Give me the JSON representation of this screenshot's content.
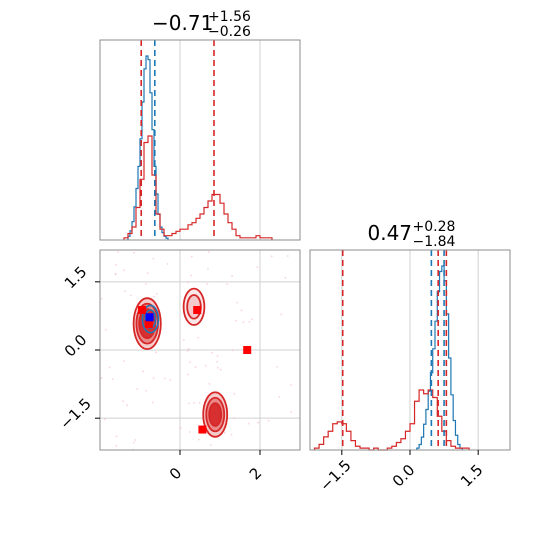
{
  "chart_data": [
    {
      "panel": "marginal-x",
      "type": "histogram",
      "title": {
        "median": "−0.71",
        "plus": "+1.56",
        "minus": "−0.26"
      },
      "xlim": [
        -2.0,
        3.0
      ],
      "grid": true,
      "series": [
        {
          "color": "#1f77b4",
          "style": "step",
          "bins": [
            -1.3,
            -1.25,
            -1.2,
            -1.15,
            -1.1,
            -1.05,
            -1.0,
            -0.95,
            -0.9,
            -0.85,
            -0.8,
            -0.75,
            -0.7,
            -0.65,
            -0.6,
            -0.55,
            -0.5,
            -0.45,
            -0.4,
            -0.35,
            -0.3
          ],
          "counts": [
            0.02,
            0.05,
            0.1,
            0.18,
            0.28,
            0.4,
            0.55,
            0.75,
            0.93,
            1.0,
            0.98,
            0.8,
            0.6,
            0.4,
            0.25,
            0.14,
            0.07,
            0.04,
            0.02,
            0.01
          ]
        },
        {
          "color": "#d62728",
          "style": "step",
          "bins": [
            -1.4,
            -1.3,
            -1.2,
            -1.1,
            -1.0,
            -0.9,
            -0.8,
            -0.7,
            -0.6,
            -0.5,
            -0.4,
            -0.3,
            -0.2,
            -0.1,
            0.0,
            0.1,
            0.2,
            0.3,
            0.4,
            0.5,
            0.6,
            0.7,
            0.8,
            0.9,
            1.0,
            1.1,
            1.2,
            1.3,
            1.4,
            1.5,
            1.6,
            1.7,
            1.8,
            1.9,
            2.0,
            2.1,
            2.2,
            2.3
          ],
          "counts": [
            0.01,
            0.03,
            0.06,
            0.15,
            0.28,
            0.45,
            0.48,
            0.3,
            0.12,
            0.05,
            0.02,
            0.02,
            0.03,
            0.04,
            0.05,
            0.05,
            0.07,
            0.08,
            0.1,
            0.12,
            0.15,
            0.18,
            0.21,
            0.21,
            0.17,
            0.12,
            0.08,
            0.05,
            0.02,
            0.01,
            0.01,
            0.01,
            0.01,
            0.02,
            0.01,
            0.01,
            0.01
          ]
        }
      ],
      "lines": [
        {
          "x": -0.97,
          "color": "#d62728"
        },
        {
          "x": -0.63,
          "color": "#1f77b4"
        },
        {
          "x": 0.85,
          "color": "#d62728"
        }
      ]
    },
    {
      "panel": "joint",
      "type": "contour",
      "xlim": [
        -2.0,
        3.0
      ],
      "ylim": [
        -2.2,
        2.2
      ],
      "grid": true,
      "xticks": [
        {
          "v": 0,
          "label": "0"
        },
        {
          "v": 2,
          "label": "2"
        }
      ],
      "yticks": [
        {
          "v": 1.5,
          "label": "1.5"
        },
        {
          "v": 0,
          "label": "0.0"
        },
        {
          "v": -1.5,
          "label": "−1.5"
        }
      ],
      "blobs": [
        {
          "cx": -0.82,
          "cy": 0.58,
          "rx": [
            0.68,
            0.54,
            0.4
          ],
          "ry": [
            1.12,
            0.88,
            0.64
          ],
          "color": "#d62728",
          "fills": [
            "#f4c5c5",
            "#e98080",
            "#d62728"
          ]
        },
        {
          "cx": 0.35,
          "cy": 0.95,
          "rx": [
            0.52,
            0.34
          ],
          "ry": [
            0.8,
            0.52
          ],
          "color": "#d62728",
          "fills": [
            "#fbe4e4",
            "#f4c5c5"
          ]
        },
        {
          "cx": 0.88,
          "cy": -1.42,
          "rx": [
            0.6,
            0.45,
            0.3
          ],
          "ry": [
            0.98,
            0.74,
            0.5
          ],
          "color": "#d62728",
          "fills": [
            "#f4c5c5",
            "#e98080",
            "#d62728"
          ]
        },
        {
          "cx": -0.74,
          "cy": 0.68,
          "rx": [
            0.4,
            0.26
          ],
          "ry": [
            0.6,
            0.4
          ],
          "color": "#1f77b4",
          "fills": [
            "none",
            "none"
          ]
        }
      ],
      "markers": [
        {
          "x": -0.95,
          "y": 0.88,
          "color": "#ff0000"
        },
        {
          "x": -0.78,
          "y": 0.57,
          "color": "#ff0000"
        },
        {
          "x": 0.43,
          "y": 0.88,
          "color": "#ff0000"
        },
        {
          "x": 1.68,
          "y": 0.0,
          "color": "#ff0000"
        },
        {
          "x": 0.56,
          "y": -1.75,
          "color": "#ff0000"
        },
        {
          "x": -0.76,
          "y": 0.72,
          "color": "#0000ff"
        }
      ]
    },
    {
      "panel": "marginal-y",
      "type": "histogram",
      "title": {
        "median": "0.47",
        "plus": "+0.28",
        "minus": "−1.84"
      },
      "xlim": [
        -2.2,
        2.2
      ],
      "grid": true,
      "xticks": [
        {
          "v": -1.5,
          "label": "−1.5"
        },
        {
          "v": 0,
          "label": "0.0"
        },
        {
          "v": 1.5,
          "label": "1.5"
        }
      ],
      "series": [
        {
          "color": "#1f77b4",
          "style": "step",
          "bins": [
            0.15,
            0.2,
            0.25,
            0.3,
            0.35,
            0.4,
            0.45,
            0.5,
            0.55,
            0.6,
            0.65,
            0.7,
            0.75,
            0.8,
            0.85,
            0.9,
            0.95,
            1.0,
            1.05,
            1.1,
            1.15
          ],
          "counts": [
            0.01,
            0.03,
            0.07,
            0.14,
            0.22,
            0.32,
            0.42,
            0.55,
            0.7,
            0.86,
            0.97,
            1.0,
            0.92,
            0.74,
            0.5,
            0.3,
            0.16,
            0.08,
            0.03,
            0.01
          ]
        },
        {
          "color": "#d62728",
          "style": "step",
          "bins": [
            -2.1,
            -2.0,
            -1.9,
            -1.8,
            -1.7,
            -1.6,
            -1.5,
            -1.4,
            -1.3,
            -1.2,
            -1.1,
            -1.0,
            -0.9,
            -0.8,
            -0.7,
            -0.6,
            -0.5,
            -0.4,
            -0.3,
            -0.2,
            -0.1,
            0.0,
            0.1,
            0.2,
            0.3,
            0.4,
            0.5,
            0.6,
            0.7,
            0.8,
            0.9,
            1.0,
            1.1,
            1.2,
            1.3
          ],
          "counts": [
            0.01,
            0.03,
            0.07,
            0.1,
            0.14,
            0.15,
            0.14,
            0.1,
            0.05,
            0.02,
            0.01,
            0.01,
            0.0,
            0.01,
            0.0,
            0.0,
            0.01,
            0.02,
            0.04,
            0.06,
            0.1,
            0.14,
            0.26,
            0.32,
            0.3,
            0.32,
            0.28,
            0.18,
            0.1,
            0.05,
            0.02,
            0.01,
            0.01,
            0.01
          ]
        }
      ],
      "lines": [
        {
          "x": -1.48,
          "color": "#d62728"
        },
        {
          "x": 0.47,
          "color": "#1f77b4"
        },
        {
          "x": 0.62,
          "color": "#d62728"
        },
        {
          "x": 0.75,
          "color": "#1f77b4"
        },
        {
          "x": 0.8,
          "color": "#d62728"
        }
      ]
    }
  ]
}
